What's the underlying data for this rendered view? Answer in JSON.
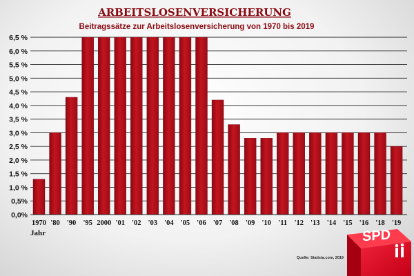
{
  "chart_data": {
    "type": "bar",
    "title": "ARBEITSLOSENVERSICHERUNG",
    "subtitle": "Beitragssätze zur Arbeitslosenversicherung von 1970 bis 2019",
    "xlabel": "Jahr",
    "ylabel": "",
    "ylim": [
      0,
      6.5
    ],
    "yticks": [
      "0,0%",
      "0,5%",
      "1,0 %",
      "1,5 %",
      "2,0 %",
      "2,5 %",
      "3,0 %",
      "3,5 %",
      "4,0 %",
      "4,5 %",
      "5,0 %",
      "5,5 %",
      "6,0 %",
      "6,5 %"
    ],
    "categories": [
      "1970",
      "'80",
      "'90",
      "'95",
      "2000",
      "'01",
      "'02",
      "'03",
      "'04",
      "'05",
      "'06",
      "'07",
      "'08",
      "'09",
      "'10",
      "'11",
      "'12",
      "'13",
      "'14",
      "'15",
      "'16",
      "'18",
      "'19"
    ],
    "values": [
      1.3,
      3.0,
      4.3,
      6.5,
      6.5,
      6.5,
      6.5,
      6.5,
      6.5,
      6.5,
      6.5,
      4.2,
      3.3,
      2.8,
      2.8,
      3.0,
      3.0,
      3.0,
      3.0,
      3.0,
      3.0,
      3.0,
      2.5
    ],
    "grid": true,
    "bar_color": "#b0101c",
    "source": "Quelle: Statista.com, 2019"
  },
  "logo": {
    "text": "SPD",
    "color": "#e2001a"
  }
}
